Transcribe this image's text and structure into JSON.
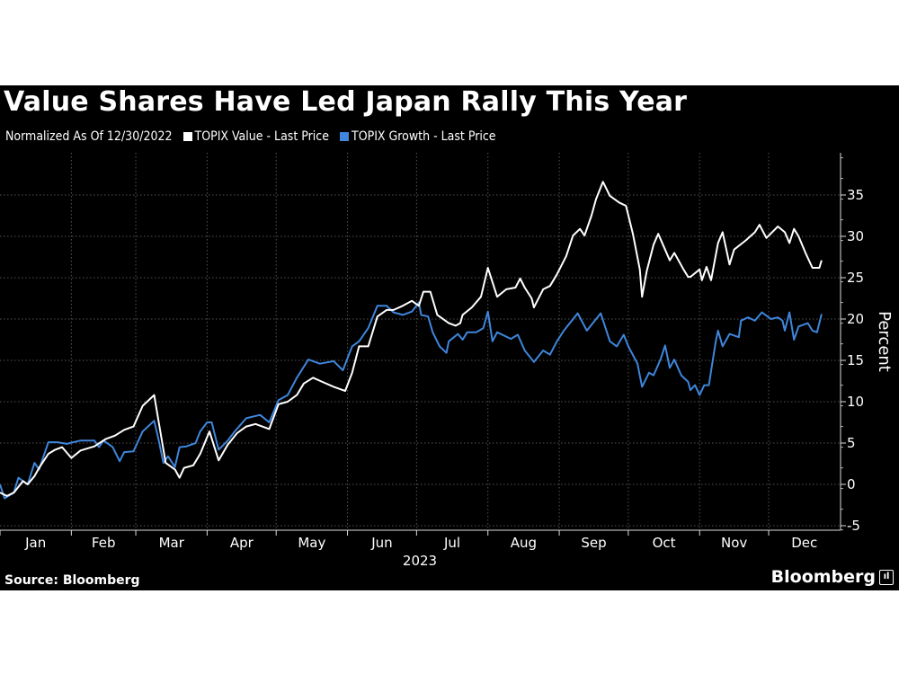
{
  "title": "Value Shares Have Led Japan Rally This Year",
  "legend": {
    "note": "Normalized As Of 12/30/2022",
    "items": [
      {
        "label": "TOPIX Value - Last Price",
        "color": "#ffffff"
      },
      {
        "label": "TOPIX Growth - Last Price",
        "color": "#3f86dc"
      }
    ]
  },
  "source": "Source: Bloomberg",
  "logo": "Bloomberg",
  "chart_data": {
    "type": "line",
    "title": "Value Shares Have Led Japan Rally This Year",
    "xlabel": "2023",
    "ylabel": "Percent",
    "x_tick_labels": [
      "Jan",
      "Feb",
      "Mar",
      "Apr",
      "May",
      "Jun",
      "Jul",
      "Aug",
      "Sep",
      "Oct",
      "Nov",
      "Dec"
    ],
    "y_ticks": [
      -5,
      0,
      5,
      10,
      15,
      20,
      25,
      30,
      35
    ],
    "ylim": [
      -8,
      40
    ],
    "y_axis_position": "right",
    "grid": true,
    "legend_position": "top-left",
    "series": [
      {
        "name": "TOPIX Value - Last Price",
        "color": "#ffffff",
        "points": [
          [
            "2023-01-01",
            -1.0
          ],
          [
            "2023-01-04",
            -1.4
          ],
          [
            "2023-01-07",
            -1.0
          ],
          [
            "2023-01-11",
            0.4
          ],
          [
            "2023-01-13",
            0
          ],
          [
            "2023-01-16",
            1.0
          ],
          [
            "2023-01-18",
            2.0
          ],
          [
            "2023-01-22",
            3.7
          ],
          [
            "2023-01-25",
            4.2
          ],
          [
            "2023-01-28",
            4.5
          ],
          [
            "2023-02-01",
            3.2
          ],
          [
            "2023-02-05",
            4.1
          ],
          [
            "2023-02-11",
            4.6
          ],
          [
            "2023-02-16",
            5.5
          ],
          [
            "2023-02-20",
            5.9
          ],
          [
            "2023-02-24",
            6.6
          ],
          [
            "2023-02-28",
            7.0
          ],
          [
            "2023-03-04",
            9.5
          ],
          [
            "2023-03-09",
            10.8
          ],
          [
            "2023-03-11",
            7.5
          ],
          [
            "2023-03-14",
            2.6
          ],
          [
            "2023-03-18",
            1.8
          ],
          [
            "2023-03-20",
            0.8
          ],
          [
            "2023-03-22",
            2.0
          ],
          [
            "2023-03-26",
            2.3
          ],
          [
            "2023-03-29",
            3.7
          ],
          [
            "2023-04-02",
            6.4
          ],
          [
            "2023-04-06",
            2.9
          ],
          [
            "2023-04-10",
            4.8
          ],
          [
            "2023-04-14",
            6.2
          ],
          [
            "2023-04-18",
            7.0
          ],
          [
            "2023-04-22",
            7.3
          ],
          [
            "2023-04-28",
            6.7
          ],
          [
            "2023-05-02",
            9.7
          ],
          [
            "2023-05-06",
            10.0
          ],
          [
            "2023-05-10",
            10.8
          ],
          [
            "2023-05-13",
            12.2
          ],
          [
            "2023-05-17",
            12.9
          ],
          [
            "2023-05-21",
            12.4
          ],
          [
            "2023-05-26",
            11.8
          ],
          [
            "2023-05-31",
            11.3
          ],
          [
            "2023-06-03",
            13.5
          ],
          [
            "2023-06-06",
            16.7
          ],
          [
            "2023-06-10",
            16.7
          ],
          [
            "2023-06-14",
            20.3
          ],
          [
            "2023-06-18",
            21.1
          ],
          [
            "2023-06-21",
            21.1
          ],
          [
            "2023-06-25",
            21.6
          ],
          [
            "2023-06-29",
            22.2
          ],
          [
            "2023-07-02",
            21.6
          ],
          [
            "2023-07-04",
            23.3
          ],
          [
            "2023-07-07",
            23.3
          ],
          [
            "2023-07-10",
            20.5
          ],
          [
            "2023-07-15",
            19.5
          ],
          [
            "2023-07-18",
            19.2
          ],
          [
            "2023-07-20",
            19.5
          ],
          [
            "2023-07-21",
            20.5
          ],
          [
            "2023-07-25",
            21.4
          ],
          [
            "2023-07-29",
            22.7
          ],
          [
            "2023-08-01",
            26.2
          ],
          [
            "2023-08-05",
            22.7
          ],
          [
            "2023-08-09",
            23.6
          ],
          [
            "2023-08-13",
            23.8
          ],
          [
            "2023-08-15",
            24.9
          ],
          [
            "2023-08-17",
            23.8
          ],
          [
            "2023-08-20",
            22.5
          ],
          [
            "2023-08-21",
            21.4
          ],
          [
            "2023-08-25",
            23.6
          ],
          [
            "2023-08-28",
            24.0
          ],
          [
            "2023-08-31",
            25.4
          ],
          [
            "2023-09-04",
            27.6
          ],
          [
            "2023-09-07",
            30.1
          ],
          [
            "2023-09-10",
            30.9
          ],
          [
            "2023-09-12",
            30.1
          ],
          [
            "2023-09-15",
            32.5
          ],
          [
            "2023-09-17",
            34.5
          ],
          [
            "2023-09-20",
            36.6
          ],
          [
            "2023-09-23",
            34.9
          ],
          [
            "2023-09-27",
            34.1
          ],
          [
            "2023-09-30",
            33.7
          ],
          [
            "2023-10-03",
            30.3
          ],
          [
            "2023-10-06",
            26.0
          ],
          [
            "2023-10-07",
            22.7
          ],
          [
            "2023-10-09",
            25.8
          ],
          [
            "2023-10-12",
            29.0
          ],
          [
            "2023-10-14",
            30.3
          ],
          [
            "2023-10-17",
            28.4
          ],
          [
            "2023-10-19",
            27.1
          ],
          [
            "2023-10-21",
            28.0
          ],
          [
            "2023-10-25",
            26.0
          ],
          [
            "2023-10-27",
            25.1
          ],
          [
            "2023-10-28",
            25.1
          ],
          [
            "2023-11-01",
            26.0
          ],
          [
            "2023-11-02",
            24.7
          ],
          [
            "2023-11-04",
            26.3
          ],
          [
            "2023-11-06",
            24.7
          ],
          [
            "2023-11-09",
            29.2
          ],
          [
            "2023-11-11",
            30.5
          ],
          [
            "2023-11-14",
            26.6
          ],
          [
            "2023-11-16",
            28.4
          ],
          [
            "2023-11-21",
            29.5
          ],
          [
            "2023-11-25",
            30.5
          ],
          [
            "2023-11-27",
            31.4
          ],
          [
            "2023-11-30",
            29.8
          ],
          [
            "2023-12-05",
            31.2
          ],
          [
            "2023-12-08",
            30.5
          ],
          [
            "2023-12-10",
            29.2
          ],
          [
            "2023-12-12",
            30.9
          ],
          [
            "2023-12-14",
            30.0
          ],
          [
            "2023-12-17",
            28.0
          ],
          [
            "2023-12-20",
            26.2
          ],
          [
            "2023-12-23",
            26.2
          ],
          [
            "2023-12-24",
            27.1
          ]
        ]
      },
      {
        "name": "TOPIX Growth - Last Price",
        "color": "#3f86dc",
        "points": [
          [
            "2023-01-01",
            0
          ],
          [
            "2023-01-03",
            -1.7
          ],
          [
            "2023-01-07",
            -1.0
          ],
          [
            "2023-01-09",
            0.8
          ],
          [
            "2023-01-13",
            0
          ],
          [
            "2023-01-16",
            2.6
          ],
          [
            "2023-01-18",
            1.8
          ],
          [
            "2023-01-22",
            5.1
          ],
          [
            "2023-01-26",
            5.1
          ],
          [
            "2023-01-30",
            4.9
          ],
          [
            "2023-02-05",
            5.3
          ],
          [
            "2023-02-11",
            5.3
          ],
          [
            "2023-02-13",
            4.5
          ],
          [
            "2023-02-15",
            5.3
          ],
          [
            "2023-02-19",
            4.5
          ],
          [
            "2023-02-22",
            2.8
          ],
          [
            "2023-02-24",
            3.9
          ],
          [
            "2023-02-28",
            4.0
          ],
          [
            "2023-03-04",
            6.4
          ],
          [
            "2023-03-09",
            7.7
          ],
          [
            "2023-03-11",
            5.3
          ],
          [
            "2023-03-13",
            2.6
          ],
          [
            "2023-03-15",
            3.4
          ],
          [
            "2023-03-18",
            2.1
          ],
          [
            "2023-03-20",
            4.5
          ],
          [
            "2023-03-23",
            4.6
          ],
          [
            "2023-03-27",
            5.0
          ],
          [
            "2023-03-29",
            6.4
          ],
          [
            "2023-04-01",
            7.5
          ],
          [
            "2023-04-03",
            7.5
          ],
          [
            "2023-04-06",
            4.2
          ],
          [
            "2023-04-10",
            5.3
          ],
          [
            "2023-04-13",
            6.4
          ],
          [
            "2023-04-18",
            8.0
          ],
          [
            "2023-04-24",
            8.4
          ],
          [
            "2023-04-28",
            7.5
          ],
          [
            "2023-05-02",
            10.2
          ],
          [
            "2023-05-06",
            10.8
          ],
          [
            "2023-05-10",
            12.9
          ],
          [
            "2023-05-15",
            15.1
          ],
          [
            "2023-05-20",
            14.6
          ],
          [
            "2023-05-26",
            14.9
          ],
          [
            "2023-05-30",
            13.8
          ],
          [
            "2023-06-03",
            16.7
          ],
          [
            "2023-06-06",
            17.3
          ],
          [
            "2023-06-10",
            18.9
          ],
          [
            "2023-06-14",
            21.6
          ],
          [
            "2023-06-18",
            21.6
          ],
          [
            "2023-06-21",
            20.8
          ],
          [
            "2023-06-25",
            20.5
          ],
          [
            "2023-06-29",
            20.9
          ],
          [
            "2023-07-02",
            22.0
          ],
          [
            "2023-07-03",
            20.5
          ],
          [
            "2023-07-06",
            20.3
          ],
          [
            "2023-07-08",
            18.4
          ],
          [
            "2023-07-11",
            16.7
          ],
          [
            "2023-07-14",
            15.9
          ],
          [
            "2023-07-15",
            17.3
          ],
          [
            "2023-07-19",
            18.2
          ],
          [
            "2023-07-21",
            17.5
          ],
          [
            "2023-07-23",
            18.4
          ],
          [
            "2023-07-27",
            18.4
          ],
          [
            "2023-07-30",
            18.9
          ],
          [
            "2023-08-01",
            20.9
          ],
          [
            "2023-08-03",
            17.3
          ],
          [
            "2023-08-05",
            18.4
          ],
          [
            "2023-08-11",
            17.6
          ],
          [
            "2023-08-14",
            18.1
          ],
          [
            "2023-08-17",
            16.2
          ],
          [
            "2023-08-21",
            14.8
          ],
          [
            "2023-08-25",
            16.2
          ],
          [
            "2023-08-28",
            15.7
          ],
          [
            "2023-08-31",
            17.3
          ],
          [
            "2023-09-03",
            18.6
          ],
          [
            "2023-09-09",
            20.7
          ],
          [
            "2023-09-13",
            18.6
          ],
          [
            "2023-09-19",
            20.7
          ],
          [
            "2023-09-23",
            17.3
          ],
          [
            "2023-09-26",
            16.7
          ],
          [
            "2023-09-29",
            18.1
          ],
          [
            "2023-10-01",
            16.7
          ],
          [
            "2023-10-05",
            14.6
          ],
          [
            "2023-10-07",
            11.8
          ],
          [
            "2023-10-10",
            13.5
          ],
          [
            "2023-10-12",
            13.2
          ],
          [
            "2023-10-15",
            15.1
          ],
          [
            "2023-10-17",
            16.8
          ],
          [
            "2023-10-19",
            14.1
          ],
          [
            "2023-10-21",
            15.1
          ],
          [
            "2023-10-24",
            13.2
          ],
          [
            "2023-10-27",
            12.4
          ],
          [
            "2023-10-28",
            11.4
          ],
          [
            "2023-10-30",
            12.0
          ],
          [
            "2023-11-01",
            10.8
          ],
          [
            "2023-11-03",
            12.0
          ],
          [
            "2023-11-05",
            12.0
          ],
          [
            "2023-11-08",
            17.3
          ],
          [
            "2023-11-09",
            18.6
          ],
          [
            "2023-11-11",
            16.7
          ],
          [
            "2023-11-14",
            18.2
          ],
          [
            "2023-11-18",
            17.8
          ],
          [
            "2023-11-19",
            19.8
          ],
          [
            "2023-11-22",
            20.2
          ],
          [
            "2023-11-25",
            19.8
          ],
          [
            "2023-11-28",
            20.8
          ],
          [
            "2023-12-02",
            20.0
          ],
          [
            "2023-12-05",
            20.2
          ],
          [
            "2023-12-07",
            19.8
          ],
          [
            "2023-12-08",
            18.6
          ],
          [
            "2023-12-10",
            20.8
          ],
          [
            "2023-12-12",
            17.5
          ],
          [
            "2023-12-14",
            19.1
          ],
          [
            "2023-12-18",
            19.5
          ],
          [
            "2023-12-20",
            18.6
          ],
          [
            "2023-12-22",
            18.4
          ],
          [
            "2023-12-24",
            20.6
          ]
        ]
      }
    ]
  }
}
